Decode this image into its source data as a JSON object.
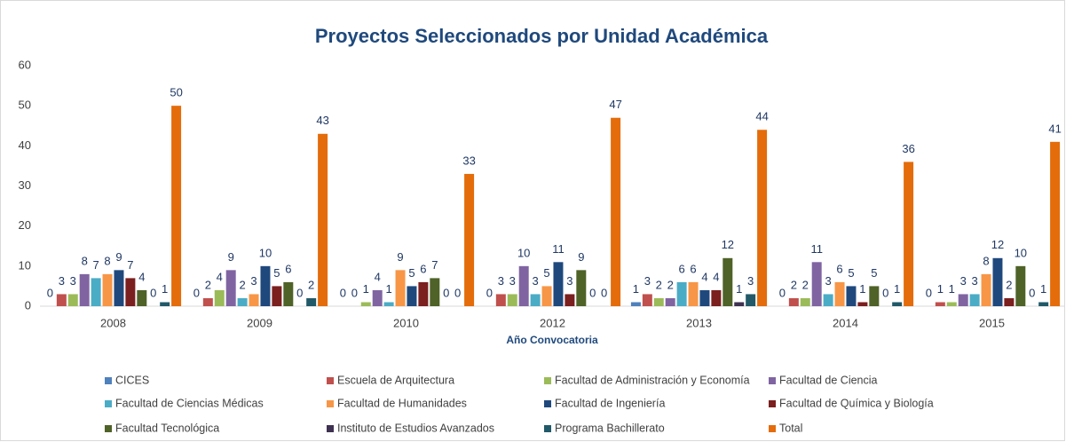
{
  "chart_data": {
    "type": "bar",
    "title": "Proyectos Seleccionados por Unidad Académica",
    "x_label": "Año Convocatoria",
    "categories": [
      "2008",
      "2009",
      "2010",
      "2012",
      "2013",
      "2014",
      "2015"
    ],
    "ylim": [
      0,
      60
    ],
    "yticks": [
      0,
      10,
      20,
      30,
      40,
      50,
      60
    ],
    "grid": false,
    "legend": "bottom",
    "series": [
      {
        "name": "CICES",
        "color": "#4f81bd",
        "values": [
          0,
          0,
          0,
          0,
          1,
          0,
          0
        ]
      },
      {
        "name": "Escuela de Arquitectura",
        "color": "#c0504d",
        "values": [
          3,
          2,
          0,
          3,
          3,
          2,
          1
        ]
      },
      {
        "name": "Facultad de Administración y Economía",
        "color": "#9bbb59",
        "values": [
          3,
          4,
          1,
          3,
          2,
          2,
          1
        ]
      },
      {
        "name": "Facultad de Ciencia",
        "color": "#8064a2",
        "values": [
          8,
          9,
          4,
          10,
          2,
          11,
          3
        ]
      },
      {
        "name": "Facultad de Ciencias Médicas",
        "color": "#4bacc6",
        "values": [
          7,
          2,
          1,
          3,
          6,
          3,
          3
        ]
      },
      {
        "name": "Facultad de Humanidades",
        "color": "#f79646",
        "values": [
          8,
          3,
          9,
          5,
          6,
          6,
          8
        ]
      },
      {
        "name": "Facultad de Ingeniería",
        "color": "#1f497d",
        "values": [
          9,
          10,
          5,
          11,
          4,
          5,
          12
        ]
      },
      {
        "name": "Facultad de Química y Biología",
        "color": "#7b1f1f",
        "values": [
          7,
          5,
          6,
          3,
          4,
          1,
          2
        ]
      },
      {
        "name": "Facultad Tecnológica",
        "color": "#4f6228",
        "values": [
          4,
          6,
          7,
          9,
          12,
          5,
          10
        ]
      },
      {
        "name": "Instituto de Estudios Avanzados",
        "color": "#3f3151",
        "values": [
          0,
          0,
          0,
          0,
          1,
          0,
          0
        ]
      },
      {
        "name": "Programa Bachillerato",
        "color": "#215968",
        "values": [
          1,
          2,
          0,
          0,
          3,
          1,
          1
        ]
      },
      {
        "name": "Total",
        "color": "#e46c0a",
        "values": [
          50,
          43,
          33,
          47,
          44,
          36,
          41
        ]
      }
    ]
  }
}
